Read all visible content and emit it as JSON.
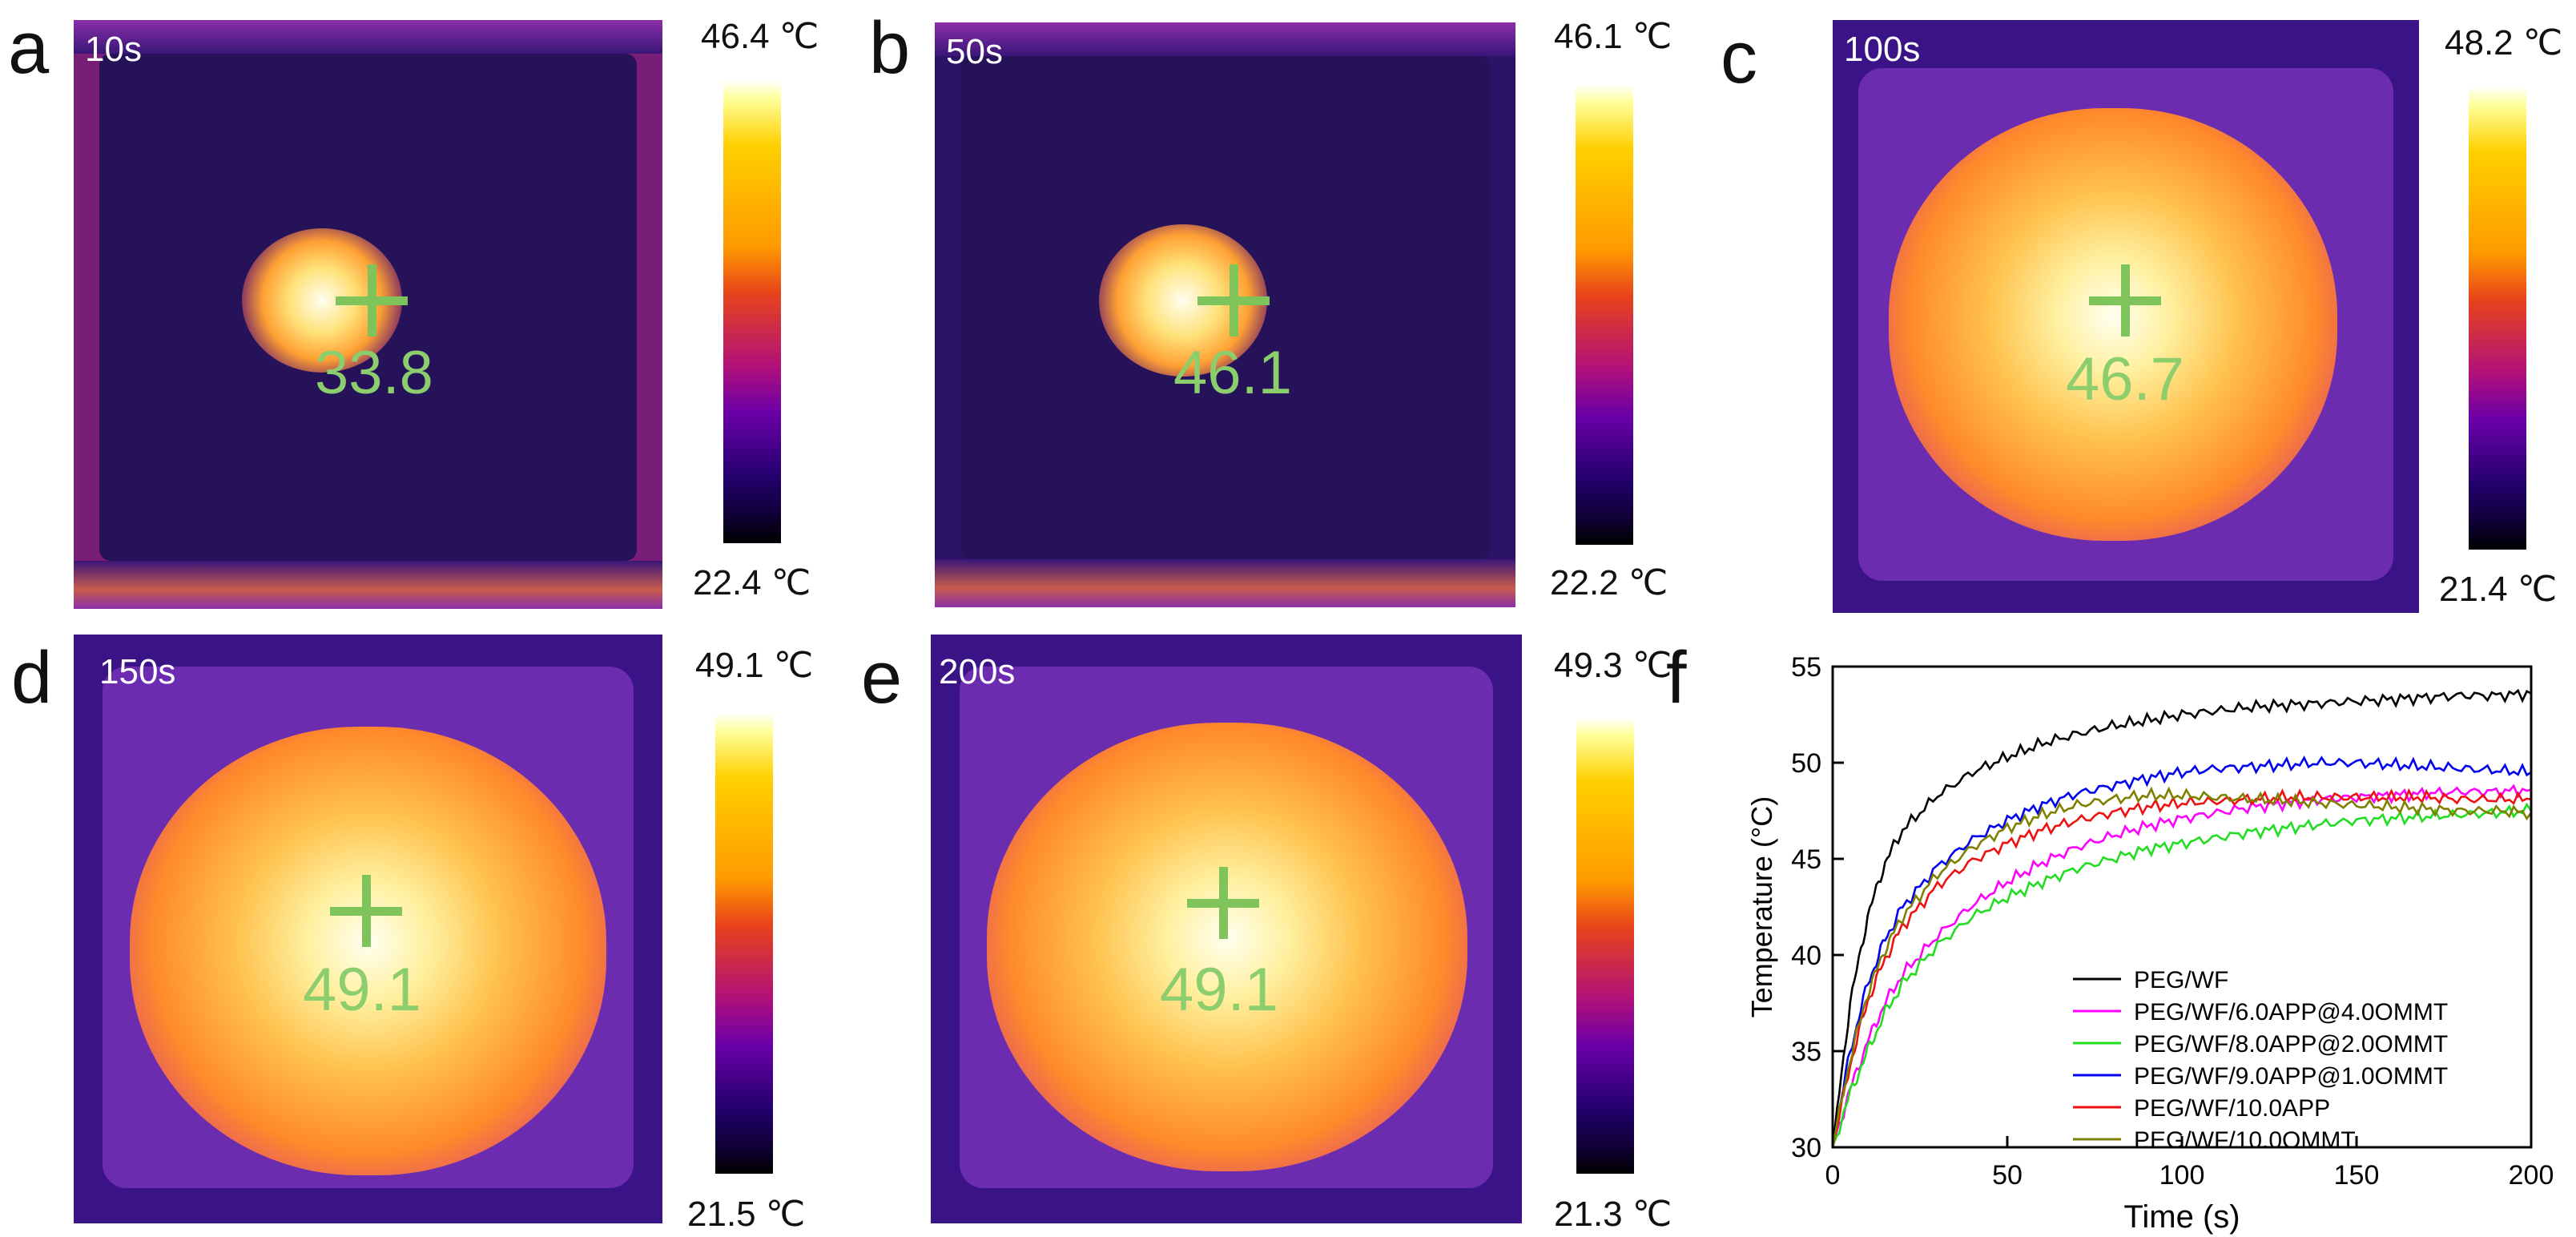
{
  "panels": [
    {
      "letter": "a",
      "time": "10s",
      "reading": "33.8",
      "cbar_max": "46.4 ℃",
      "cbar_min": "22.4 ℃"
    },
    {
      "letter": "b",
      "time": "50s",
      "reading": "46.1",
      "cbar_max": "46.1 ℃",
      "cbar_min": "22.2 ℃"
    },
    {
      "letter": "c",
      "time": "100s",
      "reading": "46.7",
      "cbar_max": "48.2 ℃",
      "cbar_min": "21.4 ℃"
    },
    {
      "letter": "d",
      "time": "150s",
      "reading": "49.1",
      "cbar_max": "49.1 ℃",
      "cbar_min": "21.5 ℃"
    },
    {
      "letter": "e",
      "time": "200s",
      "reading": "49.1",
      "cbar_max": "49.3 ℃",
      "cbar_min": "21.3 ℃"
    }
  ],
  "chart_data": {
    "panel_letter": "f",
    "type": "line",
    "xlabel": "Time (s)",
    "ylabel": "Temperature (°C)",
    "xlim": [
      0,
      200
    ],
    "ylim": [
      30,
      55
    ],
    "xticks": [
      0,
      50,
      100,
      150,
      200
    ],
    "yticks": [
      30,
      35,
      40,
      45,
      50,
      55
    ],
    "legend_position": "bottom-right",
    "x": [
      0,
      5,
      10,
      15,
      20,
      30,
      40,
      50,
      60,
      70,
      80,
      90,
      100,
      110,
      120,
      130,
      140,
      150,
      160,
      170,
      180,
      190,
      200
    ],
    "series": [
      {
        "name": "PEG/WF",
        "color": "#000000",
        "values": [
          30.0,
          37.5,
          42.0,
          44.8,
          46.5,
          48.3,
          49.5,
          50.3,
          51.0,
          51.5,
          51.9,
          52.2,
          52.5,
          52.7,
          52.9,
          53.0,
          53.1,
          53.2,
          53.3,
          53.4,
          53.5,
          53.5,
          53.6
        ]
      },
      {
        "name": "PEG/WF/6.0APP@4.0OMMT",
        "color": "#ff00ff",
        "values": [
          30.0,
          33.0,
          35.5,
          37.5,
          39.0,
          41.0,
          42.6,
          43.8,
          44.8,
          45.6,
          46.2,
          46.7,
          47.1,
          47.4,
          47.7,
          47.9,
          48.1,
          48.2,
          48.3,
          48.4,
          48.5,
          48.5,
          48.6
        ]
      },
      {
        "name": "PEG/WF/8.0APP@2.0OMMT",
        "color": "#22dd22",
        "values": [
          30.0,
          32.8,
          35.0,
          37.0,
          38.5,
          40.5,
          42.0,
          43.0,
          43.8,
          44.5,
          45.0,
          45.5,
          45.8,
          46.1,
          46.4,
          46.6,
          46.8,
          47.0,
          47.1,
          47.2,
          47.3,
          47.4,
          47.5
        ]
      },
      {
        "name": "PEG/WF/9.0APP@1.0OMMT",
        "color": "#0000ee",
        "values": [
          30.0,
          35.0,
          38.5,
          40.8,
          42.5,
          44.6,
          46.0,
          47.0,
          47.8,
          48.4,
          48.8,
          49.2,
          49.5,
          49.7,
          49.8,
          49.9,
          50.0,
          50.0,
          49.9,
          49.8,
          49.7,
          49.6,
          49.5
        ]
      },
      {
        "name": "PEG/WF/10.0APP",
        "color": "#ee1111",
        "values": [
          30.0,
          34.3,
          37.6,
          39.8,
          41.5,
          43.6,
          44.9,
          45.8,
          46.5,
          47.0,
          47.4,
          47.7,
          47.9,
          48.0,
          48.1,
          48.2,
          48.2,
          48.2,
          48.2,
          48.2,
          48.1,
          48.1,
          48.1
        ]
      },
      {
        "name": "PEG/WF/10.0OMMT",
        "color": "#808000",
        "values": [
          30.0,
          34.6,
          38.0,
          40.3,
          42.0,
          44.2,
          45.6,
          46.6,
          47.3,
          47.8,
          48.1,
          48.3,
          48.3,
          48.2,
          48.1,
          48.0,
          47.9,
          47.8,
          47.7,
          47.6,
          47.5,
          47.5,
          47.4
        ]
      }
    ]
  }
}
